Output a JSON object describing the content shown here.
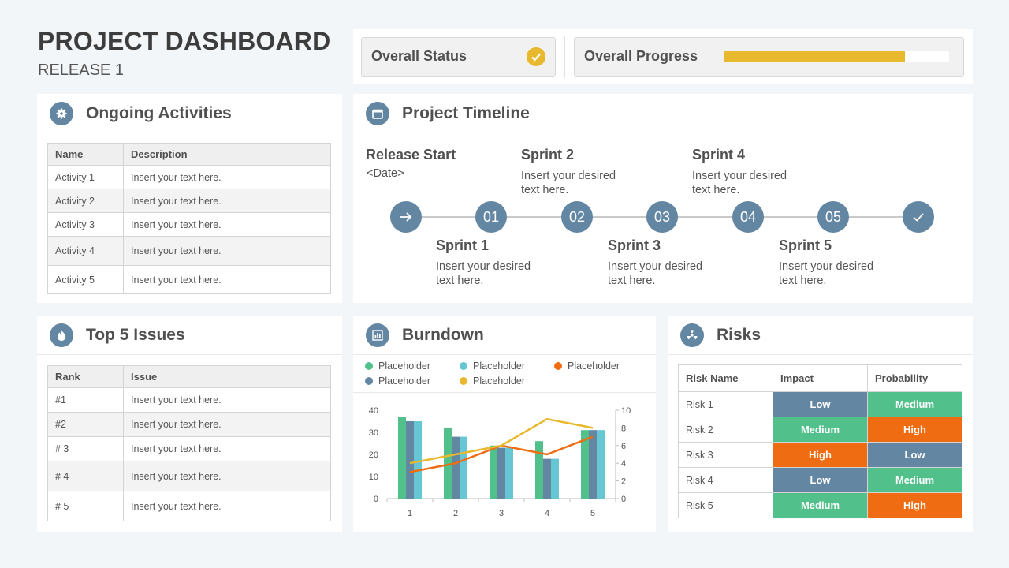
{
  "header": {
    "title": "PROJECT DASHBOARD",
    "subtitle": "RELEASE 1"
  },
  "status": {
    "overall_status_label": "Overall Status",
    "overall_progress_label": "Overall Progress",
    "progress_fraction": 0.805,
    "accent": "#e8b82e"
  },
  "ongoing": {
    "title": "Ongoing Activities",
    "columns": [
      "Name",
      "Description"
    ],
    "rows": [
      [
        "Activity  1",
        "Insert your text here."
      ],
      [
        "Activity  2",
        "Insert your text here."
      ],
      [
        "Activity  3",
        "Insert your text here."
      ],
      [
        "Activity  4",
        "Insert your text here."
      ],
      [
        "Activity  5",
        "Insert your text here."
      ]
    ]
  },
  "timeline": {
    "title": "Project Timeline",
    "release_start": {
      "title": "Release Start",
      "desc": "<Date>"
    },
    "nodes": [
      "01",
      "02",
      "03",
      "04",
      "05"
    ],
    "sprints": [
      {
        "title": "Sprint 1",
        "desc1": "Insert your desired",
        "desc2": "text here."
      },
      {
        "title": "Sprint 2",
        "desc1": "Insert your desired",
        "desc2": "text here."
      },
      {
        "title": "Sprint 3",
        "desc1": "Insert your desired",
        "desc2": "text here."
      },
      {
        "title": "Sprint 4",
        "desc1": "Insert your desired",
        "desc2": "text here."
      },
      {
        "title": "Sprint 5",
        "desc1": "Insert your desired",
        "desc2": "text here."
      }
    ],
    "node_color": "#6386a3"
  },
  "issues": {
    "title": "Top 5 Issues",
    "columns": [
      "Rank",
      "Issue"
    ],
    "rows": [
      [
        "#1",
        "Insert your text here."
      ],
      [
        "#2",
        "Insert your text here."
      ],
      [
        "# 3",
        "Insert your text here."
      ],
      [
        "# 4",
        "Insert your text here."
      ],
      [
        "# 5",
        "Insert your text here."
      ]
    ]
  },
  "burndown": {
    "title": "Burndown",
    "legend": [
      "Placeholder",
      "Placeholder",
      "Placeholder",
      "Placeholder",
      "Placeholder"
    ]
  },
  "chart_data": {
    "type": "bar",
    "categories": [
      "1",
      "2",
      "3",
      "4",
      "5"
    ],
    "ylim": [
      0,
      40
    ],
    "y2lim": [
      0,
      10
    ],
    "yticks": [
      "0",
      "10",
      "20",
      "30",
      "40"
    ],
    "y2ticks": [
      "0",
      "2",
      "4",
      "6",
      "8",
      "10"
    ],
    "series": [
      {
        "name": "Placeholder",
        "kind": "bar",
        "color": "#52c08a",
        "values": [
          37,
          32,
          24,
          26,
          31
        ]
      },
      {
        "name": "Placeholder",
        "kind": "bar",
        "color": "#6386a3",
        "values": [
          35,
          28,
          23,
          18,
          31
        ]
      },
      {
        "name": "Placeholder",
        "kind": "bar",
        "color": "#66c6d3",
        "values": [
          35,
          28,
          23,
          18,
          31
        ]
      },
      {
        "name": "Placeholder",
        "kind": "line",
        "axis": "right",
        "color": "#ef6c12",
        "values": [
          3,
          4,
          6,
          5,
          7
        ]
      },
      {
        "name": "Placeholder",
        "kind": "line",
        "axis": "right",
        "color": "#e8b82e",
        "values": [
          4,
          5,
          6,
          9,
          8
        ]
      }
    ]
  },
  "risks": {
    "title": "Risks",
    "columns": [
      "Risk Name",
      "Impact",
      "Probability"
    ],
    "rows": [
      [
        "Risk 1",
        "Low",
        "Medium"
      ],
      [
        "Risk 2",
        "Medium",
        "High"
      ],
      [
        "Risk 3",
        "High",
        "Low"
      ],
      [
        "Risk 4",
        "Low",
        "Medium"
      ],
      [
        "Risk 5",
        "Medium",
        "High"
      ]
    ],
    "level_colors": {
      "Low": "#6386a3",
      "Medium": "#52c08a",
      "High": "#ef6c12"
    }
  }
}
